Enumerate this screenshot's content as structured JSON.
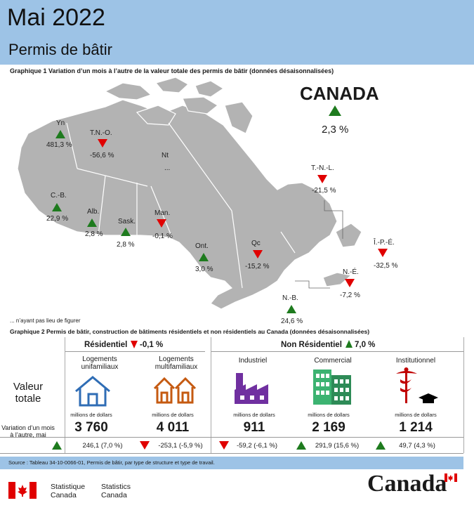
{
  "header": {
    "title": "Mai 2022",
    "subtitle": "Permis de bâtir"
  },
  "graph1": {
    "title": "Graphique 1  Variation d’un mois à l’autre de la valeur totale des permis de bâtir (données désaisonnalisées)",
    "canada": {
      "label": "CANADA",
      "value": "2,3 %",
      "direction": "up"
    },
    "regions": [
      {
        "name": "Yn",
        "value": "481,3 %",
        "direction": "up"
      },
      {
        "name": "T.N.-O.",
        "value": "-56,6 %",
        "direction": "down"
      },
      {
        "name": "Nt",
        "value": "...",
        "direction": "none"
      },
      {
        "name": "C.-B.",
        "value": "22,9 %",
        "direction": "up"
      },
      {
        "name": "Alb.",
        "value": "2,8 %",
        "direction": "up"
      },
      {
        "name": "Sask.",
        "value": "2,8 %",
        "direction": "up"
      },
      {
        "name": "Man.",
        "value": "-0,1 %",
        "direction": "down"
      },
      {
        "name": "Ont.",
        "value": "3,0 %",
        "direction": "up"
      },
      {
        "name": "Qc",
        "value": "-15,2 %",
        "direction": "down"
      },
      {
        "name": "T.-N.-L.",
        "value": "-21,5 %",
        "direction": "down"
      },
      {
        "name": "Î.-P.-É.",
        "value": "-32,5 %",
        "direction": "down"
      },
      {
        "name": "N.-É.",
        "value": "-7,2 %",
        "direction": "down"
      },
      {
        "name": "N.-B.",
        "value": "24,6 %",
        "direction": "up"
      }
    ],
    "note": "... n’ayant pas lieu de figurer"
  },
  "graph2": {
    "title": "Graphique 2  Permis de bâtir, construction de bâtiments résidentiels et non résidentiels au Canada (données désaisonnalisées)",
    "residential": {
      "label": "Résidentiel",
      "change": "-0,1 %",
      "direction": "down"
    },
    "nonresidential": {
      "label": "Non Résidentiel",
      "change": "7,0 %",
      "direction": "up"
    },
    "row_total": "Valeur totale",
    "row_change": "Variation d’un mois à l’autre, mai",
    "unit": "millions de dollars",
    "columns": [
      {
        "title": "Logements unifamiliaux",
        "value": "3 760",
        "change": "246,1 (7,0 %)",
        "direction": "up",
        "icon": "house-icon"
      },
      {
        "title": "Logements multifamiliaux",
        "value": "4 011",
        "change": "-253,1 (-5,9 %)",
        "direction": "down",
        "icon": "houses-icon"
      },
      {
        "title": "Industriel",
        "value": "911",
        "change": "-59,2 (-6,1 %)",
        "direction": "down",
        "icon": "factory-icon"
      },
      {
        "title": "Commercial",
        "value": "2 169",
        "change": "291,9 (15,6 %)",
        "direction": "up",
        "icon": "office-building-icon"
      },
      {
        "title": "Institutionnel",
        "value": "1 214",
        "change": "49,7 (4,3 %)",
        "direction": "up",
        "icon": "caduceus-icon"
      }
    ]
  },
  "source": "Source : Tableau 34-10-0066-01, Permis de bâtir, par type de structure et type de travail.",
  "footer": {
    "sc_fr": [
      "Statistique",
      "Canada"
    ],
    "sc_en": [
      "Statistics",
      "Canada"
    ],
    "wordmark": "Canada"
  },
  "colors": {
    "header_bg": "#9dc3e6",
    "up": "#1e7b1e",
    "down": "#e00000",
    "map": "#b3b3b3"
  }
}
